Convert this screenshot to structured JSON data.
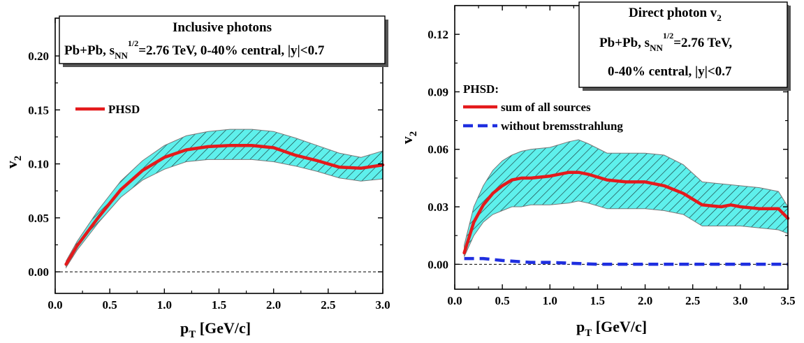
{
  "chart_data": [
    {
      "type": "line",
      "xlabel": "p",
      "xlabel_sub": "T",
      "xlabel_rest": " [GeV/c]",
      "ylabel": "v",
      "ylabel_sub": "2",
      "xlim": [
        0.0,
        3.0
      ],
      "ylim": [
        -0.02,
        0.235
      ],
      "xticks": [
        "0.0",
        "0.5",
        "1.0",
        "1.5",
        "2.0",
        "2.5",
        "3.0"
      ],
      "xtick_values": [
        0.0,
        0.5,
        1.0,
        1.5,
        2.0,
        2.5,
        3.0
      ],
      "yticks": [
        "0.00",
        "0.05",
        "0.10",
        "0.15",
        "0.20"
      ],
      "ytick_values": [
        0.0,
        0.05,
        0.1,
        0.15,
        0.2
      ],
      "title_box": {
        "line1": "Inclusive photons",
        "line2_a": "Pb+Pb, s",
        "line2_sub": "NN",
        "line2_sup": "1/2",
        "line2_b": "=2.76 TeV, 0-40% central, |y|<0.7"
      },
      "legend": {
        "items": [
          {
            "label": "PHSD",
            "color": "#e41a1c",
            "style": "solid"
          }
        ]
      },
      "band": {
        "x": [
          0.1,
          0.2,
          0.4,
          0.6,
          0.8,
          1.0,
          1.2,
          1.4,
          1.6,
          1.8,
          2.0,
          2.2,
          2.4,
          2.6,
          2.8,
          3.0
        ],
        "upper": [
          0.01,
          0.028,
          0.058,
          0.084,
          0.103,
          0.117,
          0.126,
          0.13,
          0.132,
          0.132,
          0.13,
          0.124,
          0.117,
          0.11,
          0.106,
          0.112
        ],
        "lower": [
          0.004,
          0.02,
          0.046,
          0.069,
          0.085,
          0.095,
          0.102,
          0.104,
          0.104,
          0.104,
          0.102,
          0.098,
          0.093,
          0.087,
          0.084,
          0.086
        ]
      },
      "series": [
        {
          "name": "PHSD",
          "color": "#e41a1c",
          "dash": "solid",
          "x": [
            0.1,
            0.2,
            0.4,
            0.6,
            0.8,
            1.0,
            1.2,
            1.4,
            1.6,
            1.8,
            2.0,
            2.2,
            2.4,
            2.6,
            2.8,
            3.0
          ],
          "y": [
            0.007,
            0.024,
            0.051,
            0.076,
            0.094,
            0.106,
            0.113,
            0.116,
            0.117,
            0.117,
            0.115,
            0.108,
            0.103,
            0.097,
            0.096,
            0.099
          ]
        }
      ],
      "zero_line": true
    },
    {
      "type": "line",
      "xlabel": "p",
      "xlabel_sub": "T",
      "xlabel_rest": " [GeV/c]",
      "ylabel": "v",
      "ylabel_sub": "2",
      "xlim": [
        0.0,
        3.5
      ],
      "ylim": [
        -0.013,
        0.135
      ],
      "xticks": [
        "0.0",
        "0.5",
        "1.0",
        "1.5",
        "2.0",
        "2.5",
        "3.0",
        "3.5"
      ],
      "xtick_values": [
        0.0,
        0.5,
        1.0,
        1.5,
        2.0,
        2.5,
        3.0,
        3.5
      ],
      "yticks": [
        "0.00",
        "0.03",
        "0.06",
        "0.09",
        "0.12"
      ],
      "ytick_values": [
        0.0,
        0.03,
        0.06,
        0.09,
        0.12
      ],
      "title_box": {
        "line1_a": "Direct photon v",
        "line1_sub": "2",
        "line2_a": "Pb+Pb, s",
        "line2_sub": "NN",
        "line2_sup": "1/2",
        "line2_b": "=2.76 TeV,",
        "line3": "0-40% central, |y|<0.7"
      },
      "legend": {
        "title": "PHSD:",
        "items": [
          {
            "label": "sum of all sources",
            "color": "#e41a1c",
            "style": "solid"
          },
          {
            "label": "without bremsstrahlung",
            "color": "#1f2fe0",
            "style": "dashed"
          }
        ]
      },
      "band": {
        "x": [
          0.1,
          0.2,
          0.3,
          0.4,
          0.5,
          0.6,
          0.7,
          0.8,
          1.0,
          1.2,
          1.3,
          1.4,
          1.6,
          1.8,
          2.0,
          2.2,
          2.4,
          2.6,
          2.8,
          3.0,
          3.2,
          3.4,
          3.5
        ],
        "upper": [
          0.01,
          0.03,
          0.041,
          0.049,
          0.054,
          0.057,
          0.059,
          0.06,
          0.061,
          0.064,
          0.065,
          0.063,
          0.058,
          0.058,
          0.058,
          0.057,
          0.052,
          0.043,
          0.042,
          0.041,
          0.04,
          0.038,
          0.03
        ],
        "lower": [
          0.004,
          0.015,
          0.022,
          0.026,
          0.028,
          0.03,
          0.03,
          0.031,
          0.031,
          0.032,
          0.033,
          0.032,
          0.029,
          0.029,
          0.029,
          0.028,
          0.026,
          0.02,
          0.02,
          0.02,
          0.019,
          0.018,
          0.016
        ]
      },
      "series": [
        {
          "name": "sum of all sources",
          "color": "#e41a1c",
          "dash": "solid",
          "x": [
            0.1,
            0.2,
            0.3,
            0.4,
            0.5,
            0.6,
            0.7,
            0.8,
            1.0,
            1.2,
            1.3,
            1.4,
            1.6,
            1.8,
            2.0,
            2.2,
            2.4,
            2.6,
            2.8,
            2.9,
            3.0,
            3.2,
            3.4,
            3.5
          ],
          "y": [
            0.006,
            0.022,
            0.031,
            0.037,
            0.041,
            0.044,
            0.045,
            0.045,
            0.046,
            0.048,
            0.048,
            0.047,
            0.044,
            0.043,
            0.043,
            0.041,
            0.037,
            0.031,
            0.03,
            0.031,
            0.03,
            0.029,
            0.029,
            0.024
          ]
        },
        {
          "name": "without bremsstrahlung",
          "color": "#1f2fe0",
          "dash": "dashed",
          "x": [
            0.1,
            0.3,
            0.5,
            0.8,
            1.0,
            1.5,
            2.0,
            2.5,
            3.0,
            3.5
          ],
          "y": [
            0.003,
            0.003,
            0.002,
            0.001,
            0.001,
            0.0,
            0.0,
            0.0,
            0.0,
            0.0
          ]
        }
      ],
      "zero_line": true
    }
  ]
}
